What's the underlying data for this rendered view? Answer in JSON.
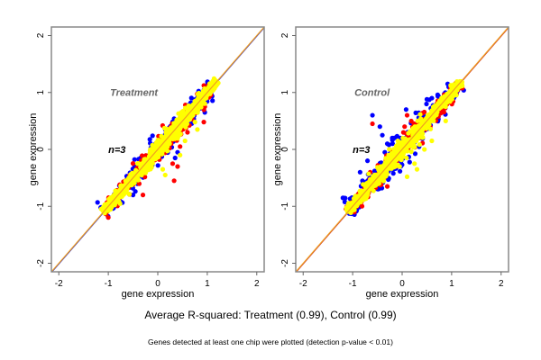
{
  "chart_data": [
    {
      "type": "scatter",
      "title": "Treatment",
      "annotation": "n=3",
      "xlabel": "gene expression",
      "ylabel": "gene expression",
      "xlim": [
        -2.15,
        2.15
      ],
      "ylim": [
        -2.15,
        2.15
      ],
      "xticks": [
        "-2",
        "-1",
        "0",
        "1",
        "2"
      ],
      "yticks": [
        "-2",
        "-1",
        "0",
        "1",
        "2"
      ],
      "reference_lines": [
        {
          "slope": 1,
          "intercept": 0,
          "colors": [
            "#3030c8",
            "#f0a020"
          ]
        }
      ],
      "series": [
        {
          "name": "blue",
          "color": "#0000ff",
          "spread": 0.09,
          "range": [
            -1.1,
            1.15
          ],
          "outliers": [
            [
              0.95,
              0.65
            ],
            [
              0.4,
              -0.05
            ],
            [
              0.35,
              -0.15
            ],
            [
              -0.5,
              -0.8
            ],
            [
              0.9,
              0.78
            ]
          ]
        },
        {
          "name": "red",
          "color": "#ff0000",
          "spread": 0.08,
          "range": [
            -1.1,
            1.15
          ],
          "outliers": [
            [
              0.93,
              0.48
            ],
            [
              0.33,
              -0.55
            ],
            [
              0.95,
              0.75
            ],
            [
              0.4,
              -0.3
            ],
            [
              -0.3,
              -0.8
            ],
            [
              0.3,
              -0.25
            ],
            [
              0.45,
              0.05
            ],
            [
              0.6,
              0.3
            ]
          ]
        },
        {
          "name": "yellow",
          "color": "#ffff00",
          "spread": 0.06,
          "range": [
            -1.1,
            1.2
          ],
          "outliers": [
            [
              0.15,
              -0.45
            ],
            [
              0.55,
              0.15
            ],
            [
              0.75,
              0.48
            ],
            [
              0.8,
              0.35
            ],
            [
              0.1,
              -0.35
            ],
            [
              0.45,
              -0.1
            ]
          ]
        }
      ]
    },
    {
      "type": "scatter",
      "title": "Control",
      "annotation": "n=3",
      "xlabel": "gene expression",
      "ylabel": "gene expression",
      "xlim": [
        -2.15,
        2.15
      ],
      "ylim": [
        -2.15,
        2.15
      ],
      "xticks": [
        "-2",
        "-1",
        "0",
        "1",
        "2"
      ],
      "yticks": [
        "-2",
        "-1",
        "0",
        "1",
        "2"
      ],
      "reference_lines": [
        {
          "slope": 1,
          "intercept": 0,
          "colors": [
            "#c83030",
            "#f0a020"
          ]
        }
      ],
      "series": [
        {
          "name": "blue",
          "color": "#0000ff",
          "spread": 0.11,
          "range": [
            -1.1,
            1.15
          ],
          "outliers": [
            [
              -0.6,
              0.6
            ],
            [
              -0.4,
              0.25
            ],
            [
              -0.85,
              -0.4
            ],
            [
              0.08,
              0.7
            ],
            [
              0.6,
              0.9
            ],
            [
              0.5,
              0.88
            ],
            [
              -0.3,
              0.1
            ],
            [
              -0.45,
              0.4
            ],
            [
              -0.2,
              0.2
            ],
            [
              -0.35,
              -0.05
            ],
            [
              -0.7,
              -0.2
            ]
          ]
        },
        {
          "name": "red",
          "color": "#ff0000",
          "spread": 0.08,
          "range": [
            -1.1,
            1.15
          ],
          "outliers": [
            [
              -0.6,
              0.45
            ],
            [
              0.1,
              0.6
            ],
            [
              -0.3,
              -0.65
            ],
            [
              -0.2,
              -0.1
            ],
            [
              0.05,
              0.4
            ]
          ]
        },
        {
          "name": "yellow",
          "color": "#ffff00",
          "spread": 0.06,
          "range": [
            -1.1,
            1.2
          ],
          "outliers": [
            [
              0.88,
              0.5
            ],
            [
              0.88,
              0.75
            ],
            [
              0.6,
              0.15
            ],
            [
              0.3,
              -0.35
            ],
            [
              0.1,
              -0.48
            ],
            [
              0.25,
              -0.25
            ],
            [
              0.45,
              0.0
            ],
            [
              -0.05,
              -0.3
            ]
          ]
        }
      ]
    }
  ],
  "captions": {
    "main": "Average R-squared: Treatment (0.99), Control (0.99)",
    "sub": "Genes detected at least one chip were plotted (detection p-value < 0.01)"
  }
}
